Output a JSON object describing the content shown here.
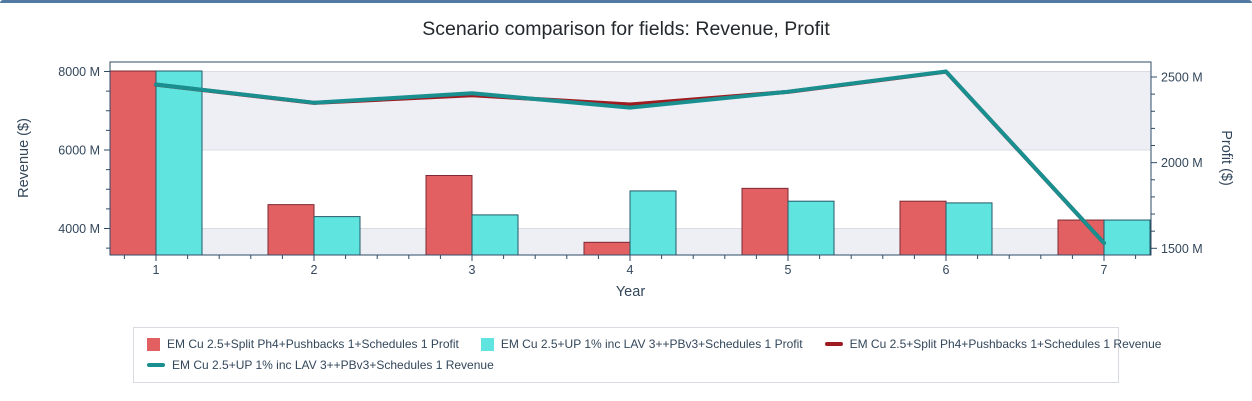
{
  "chart_data": {
    "type": "combo-bar-line",
    "title": "Scenario comparison for fields: Revenue, Profit",
    "xlabel": "Year",
    "x": [
      1,
      2,
      3,
      4,
      5,
      6,
      7
    ],
    "x_tick_labels": [
      "1",
      "2",
      "3",
      "4",
      "5",
      "6",
      "7"
    ],
    "left_axis": {
      "label": "Revenue ($)",
      "ticks": [
        {
          "v": 8000,
          "label": "8000 M"
        },
        {
          "v": 6000,
          "label": "6000 M"
        },
        {
          "v": 4000,
          "label": "4000 M"
        }
      ],
      "minor_step": 500,
      "unit": "M"
    },
    "right_axis": {
      "label": "Profit ($)",
      "ticks": [
        {
          "v": 2500,
          "label": "2500 M"
        },
        {
          "v": 2000,
          "label": "2000 M"
        },
        {
          "v": 1500,
          "label": "1500 M"
        }
      ],
      "minor_step": 100,
      "unit": "M"
    },
    "bar_series": [
      {
        "name": "EM Cu 2.5+Split Ph4+Pushbacks 1+Schedules 1 Profit",
        "axis": "right",
        "fill": "#e26061",
        "border": "#7d2935",
        "values": [
          2535,
          1755,
          1925,
          1535,
          1850,
          1775,
          1665
        ]
      },
      {
        "name": "EM Cu 2.5+UP 1% inc LAV 3++PBv3+Schedules 1 Profit",
        "axis": "right",
        "fill": "#5fe4df",
        "border": "#235a68",
        "values": [
          2535,
          1685,
          1695,
          1835,
          1775,
          1765,
          1665
        ]
      }
    ],
    "line_series": [
      {
        "name": "EM Cu 2.5+Split Ph4+Pushbacks 1+Schedules 1 Revenue",
        "axis": "left",
        "color": "#9e1b1f",
        "values": [
          7665,
          7200,
          7395,
          7160,
          7480,
          7995,
          3630
        ]
      },
      {
        "name": "EM Cu 2.5+UP 1% inc LAV 3++PBv3+Schedules 1 Revenue",
        "axis": "left",
        "color": "#1a8f90",
        "values": [
          7670,
          7205,
          7445,
          7080,
          7485,
          8000,
          3630
        ]
      }
    ],
    "legend_rows": [
      [
        0,
        1,
        2
      ],
      [
        3
      ]
    ],
    "colors": {
      "panel_top_border": "#527aa3",
      "band_fill": "#edeff4",
      "band_line": "#d9dde3",
      "axis_line": "#2f4b66",
      "tick_text": "#33475b",
      "axis_title_text": "#33475b",
      "title_text": "#24292e",
      "legend_border": "#d8dbe0",
      "legend_text": "#33475b"
    }
  }
}
